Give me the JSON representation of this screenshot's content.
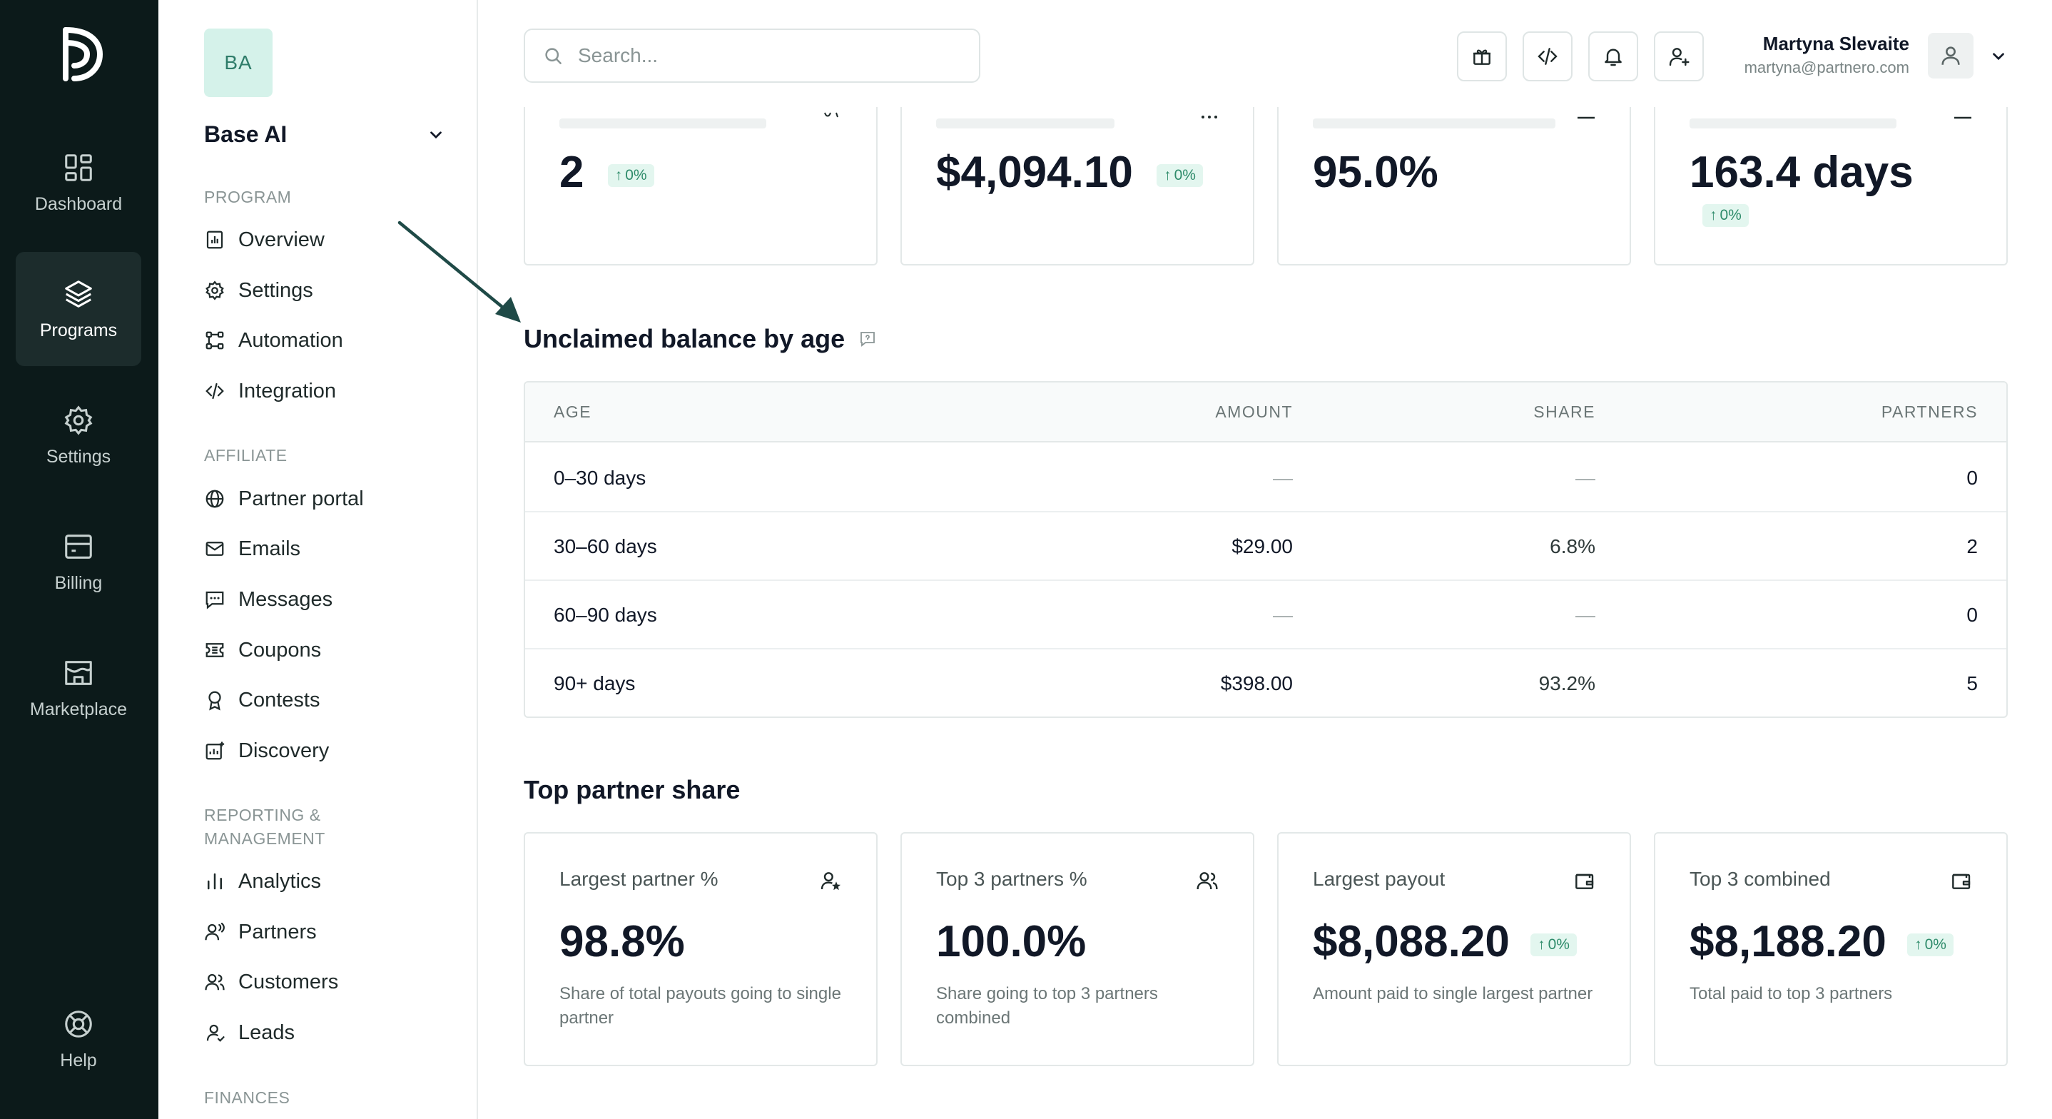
{
  "rail": {
    "items": [
      {
        "label": "Dashboard",
        "icon": "dashboard-icon"
      },
      {
        "label": "Programs",
        "icon": "layers-icon",
        "active": true
      },
      {
        "label": "Settings",
        "icon": "gear-icon"
      },
      {
        "label": "Billing",
        "icon": "billing-icon"
      },
      {
        "label": "Marketplace",
        "icon": "store-icon"
      }
    ],
    "help_label": "Help"
  },
  "sidebar": {
    "workspace_initials": "BA",
    "workspace_name": "Base AI",
    "sections": [
      {
        "label": "PROGRAM",
        "items": [
          "Overview",
          "Settings",
          "Automation",
          "Integration"
        ]
      },
      {
        "label": "AFFILIATE",
        "items": [
          "Partner portal",
          "Emails",
          "Messages",
          "Coupons",
          "Contests",
          "Discovery"
        ]
      },
      {
        "label": "REPORTING & MANAGEMENT",
        "items": [
          "Analytics",
          "Partners",
          "Customers",
          "Leads"
        ]
      },
      {
        "label": "FINANCES",
        "items": []
      }
    ]
  },
  "header": {
    "search_placeholder": "Search...",
    "user_name": "Martyna Slevaite",
    "user_email": "martyna@partnero.com"
  },
  "top_stats": [
    {
      "value": "2",
      "change": "0%"
    },
    {
      "value": "$4,094.10",
      "change": "0%"
    },
    {
      "value": "95.0%"
    },
    {
      "value": "163.4 days",
      "change": "0%"
    }
  ],
  "unclaimed": {
    "title": "Unclaimed balance by age",
    "columns": [
      "AGE",
      "AMOUNT",
      "SHARE",
      "PARTNERS"
    ],
    "rows": [
      {
        "age": "0–30 days",
        "amount": "—",
        "share": "—",
        "partners": "0"
      },
      {
        "age": "30–60 days",
        "amount": "$29.00",
        "share": "6.8%",
        "partners": "2"
      },
      {
        "age": "60–90 days",
        "amount": "—",
        "share": "—",
        "partners": "0"
      },
      {
        "age": "90+ days",
        "amount": "$398.00",
        "share": "93.2%",
        "partners": "5"
      }
    ]
  },
  "top_partner_share": {
    "title": "Top partner share",
    "cards": [
      {
        "label": "Largest partner %",
        "value": "98.8%",
        "desc": "Share of total payouts going to single partner",
        "icon": "user-star-icon"
      },
      {
        "label": "Top 3 partners %",
        "value": "100.0%",
        "desc": "Share going to top 3 partners combined",
        "icon": "users-icon"
      },
      {
        "label": "Largest payout",
        "value": "$8,088.20",
        "change": "0%",
        "desc": "Amount paid to single largest partner",
        "icon": "wallet-icon"
      },
      {
        "label": "Top 3 combined",
        "value": "$8,188.20",
        "change": "0%",
        "desc": "Total paid to top 3 partners",
        "icon": "wallet-icon"
      }
    ]
  },
  "colors": {
    "rail_bg": "#0c1a1a",
    "accent": "#2e8b6a",
    "badge_bg": "#d5f2ea"
  }
}
